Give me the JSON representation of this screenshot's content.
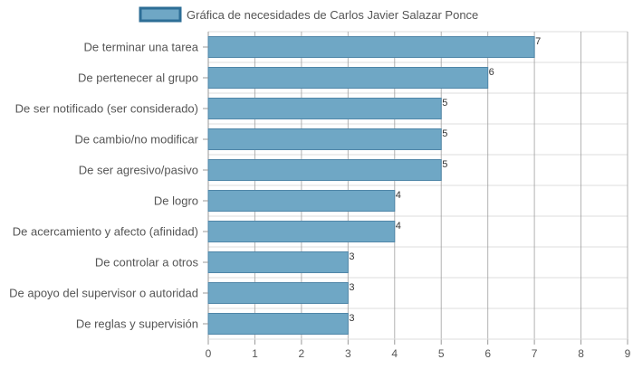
{
  "chart_data": {
    "type": "bar",
    "orientation": "horizontal",
    "categories": [
      "De terminar una tarea",
      "De pertenecer al grupo",
      "De ser notificado (ser considerado)",
      "De cambio/no modificar",
      "De ser agresivo/pasivo",
      "De logro",
      "De acercamiento y afecto (afinidad)",
      "De controlar a otros",
      "De apoyo del supervisor o autoridad",
      "De reglas y supervisión"
    ],
    "series": [
      {
        "name": "Gráfica de necesidades de Carlos Javier Salazar Ponce",
        "values": [
          7,
          6,
          5,
          5,
          5,
          4,
          4,
          3,
          3,
          3
        ]
      }
    ],
    "xlim": [
      0,
      9
    ],
    "x_ticks": [
      "0",
      "1",
      "2",
      "3",
      "4",
      "5",
      "6",
      "7",
      "8",
      "9"
    ],
    "grid": true,
    "legend_position": "top-center",
    "bar_color": "#6fa7c5",
    "bar_border_color": "#4f86a8",
    "legend_fill_color": "#6fa7c5",
    "legend_border_color": "#2d6e96",
    "grid_color": "#dddddd",
    "axis_color": "#999999"
  }
}
